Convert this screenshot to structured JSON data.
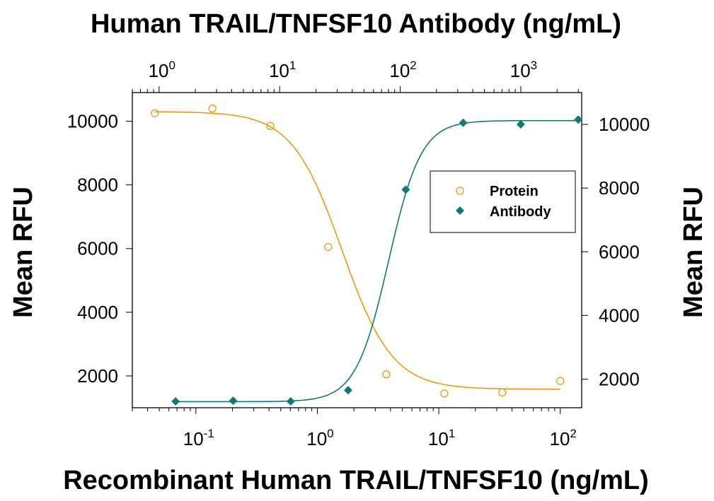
{
  "chart_data": {
    "type": "scatter",
    "title": "Human TRAIL/TNFSF10 Antibody (ng/mL)",
    "xlabel": "Recombinant Human TRAIL/TNFSF10 (ng/mL)",
    "ylabel_left": "Mean RFU",
    "ylabel_right": "Mean RFU",
    "x_scale": "log",
    "x_bottom": {
      "lim": [
        0.03,
        150
      ],
      "ticks": [
        {
          "value": 0.1,
          "base": "10",
          "exp": "-1"
        },
        {
          "value": 1,
          "base": "10",
          "exp": "0"
        },
        {
          "value": 10,
          "base": "10",
          "exp": "1"
        },
        {
          "value": 100,
          "base": "10",
          "exp": "2"
        }
      ]
    },
    "x_top": {
      "lim": [
        0.6,
        3200
      ],
      "ticks": [
        {
          "value": 1,
          "base": "10",
          "exp": "0"
        },
        {
          "value": 10,
          "base": "10",
          "exp": "1"
        },
        {
          "value": 100,
          "base": "10",
          "exp": "2"
        },
        {
          "value": 1000,
          "base": "10",
          "exp": "3"
        }
      ]
    },
    "y_left": {
      "lim": [
        1000,
        10900
      ],
      "ticks": [
        "2000",
        "4000",
        "6000",
        "8000",
        "10000"
      ]
    },
    "y_right": {
      "lim": [
        1100,
        11000
      ],
      "ticks": [
        "2000",
        "4000",
        "6000",
        "8000",
        "10000"
      ]
    },
    "grid": false,
    "legend_position": "right",
    "series": [
      {
        "name": "Protein",
        "axis": "bottom-left",
        "marker": "open-circle",
        "color": "#E69A14",
        "points": [
          {
            "x": 0.046,
            "y": 10250
          },
          {
            "x": 0.137,
            "y": 10400
          },
          {
            "x": 0.41,
            "y": 9850
          },
          {
            "x": 1.23,
            "y": 6050
          },
          {
            "x": 3.7,
            "y": 2050
          },
          {
            "x": 11.1,
            "y": 1450
          },
          {
            "x": 33.3,
            "y": 1480
          },
          {
            "x": 100,
            "y": 1840
          }
        ],
        "fit": {
          "bottom": 1580,
          "top": 10300,
          "ec50": 1.6,
          "hill": -2.1
        }
      },
      {
        "name": "Antibody",
        "axis": "top-right",
        "marker": "filled-diamond",
        "color": "#127A71",
        "points": [
          {
            "x": 1.372,
            "y": 1300
          },
          {
            "x": 4.115,
            "y": 1320
          },
          {
            "x": 12.35,
            "y": 1300
          },
          {
            "x": 37.0,
            "y": 1650
          },
          {
            "x": 111.1,
            "y": 7950
          },
          {
            "x": 333.3,
            "y": 10050
          },
          {
            "x": 1000,
            "y": 10000
          },
          {
            "x": 3000,
            "y": 10150
          }
        ],
        "fit": {
          "bottom": 1290,
          "top": 10120,
          "ec50": 80,
          "hill": 3.2
        }
      }
    ]
  }
}
